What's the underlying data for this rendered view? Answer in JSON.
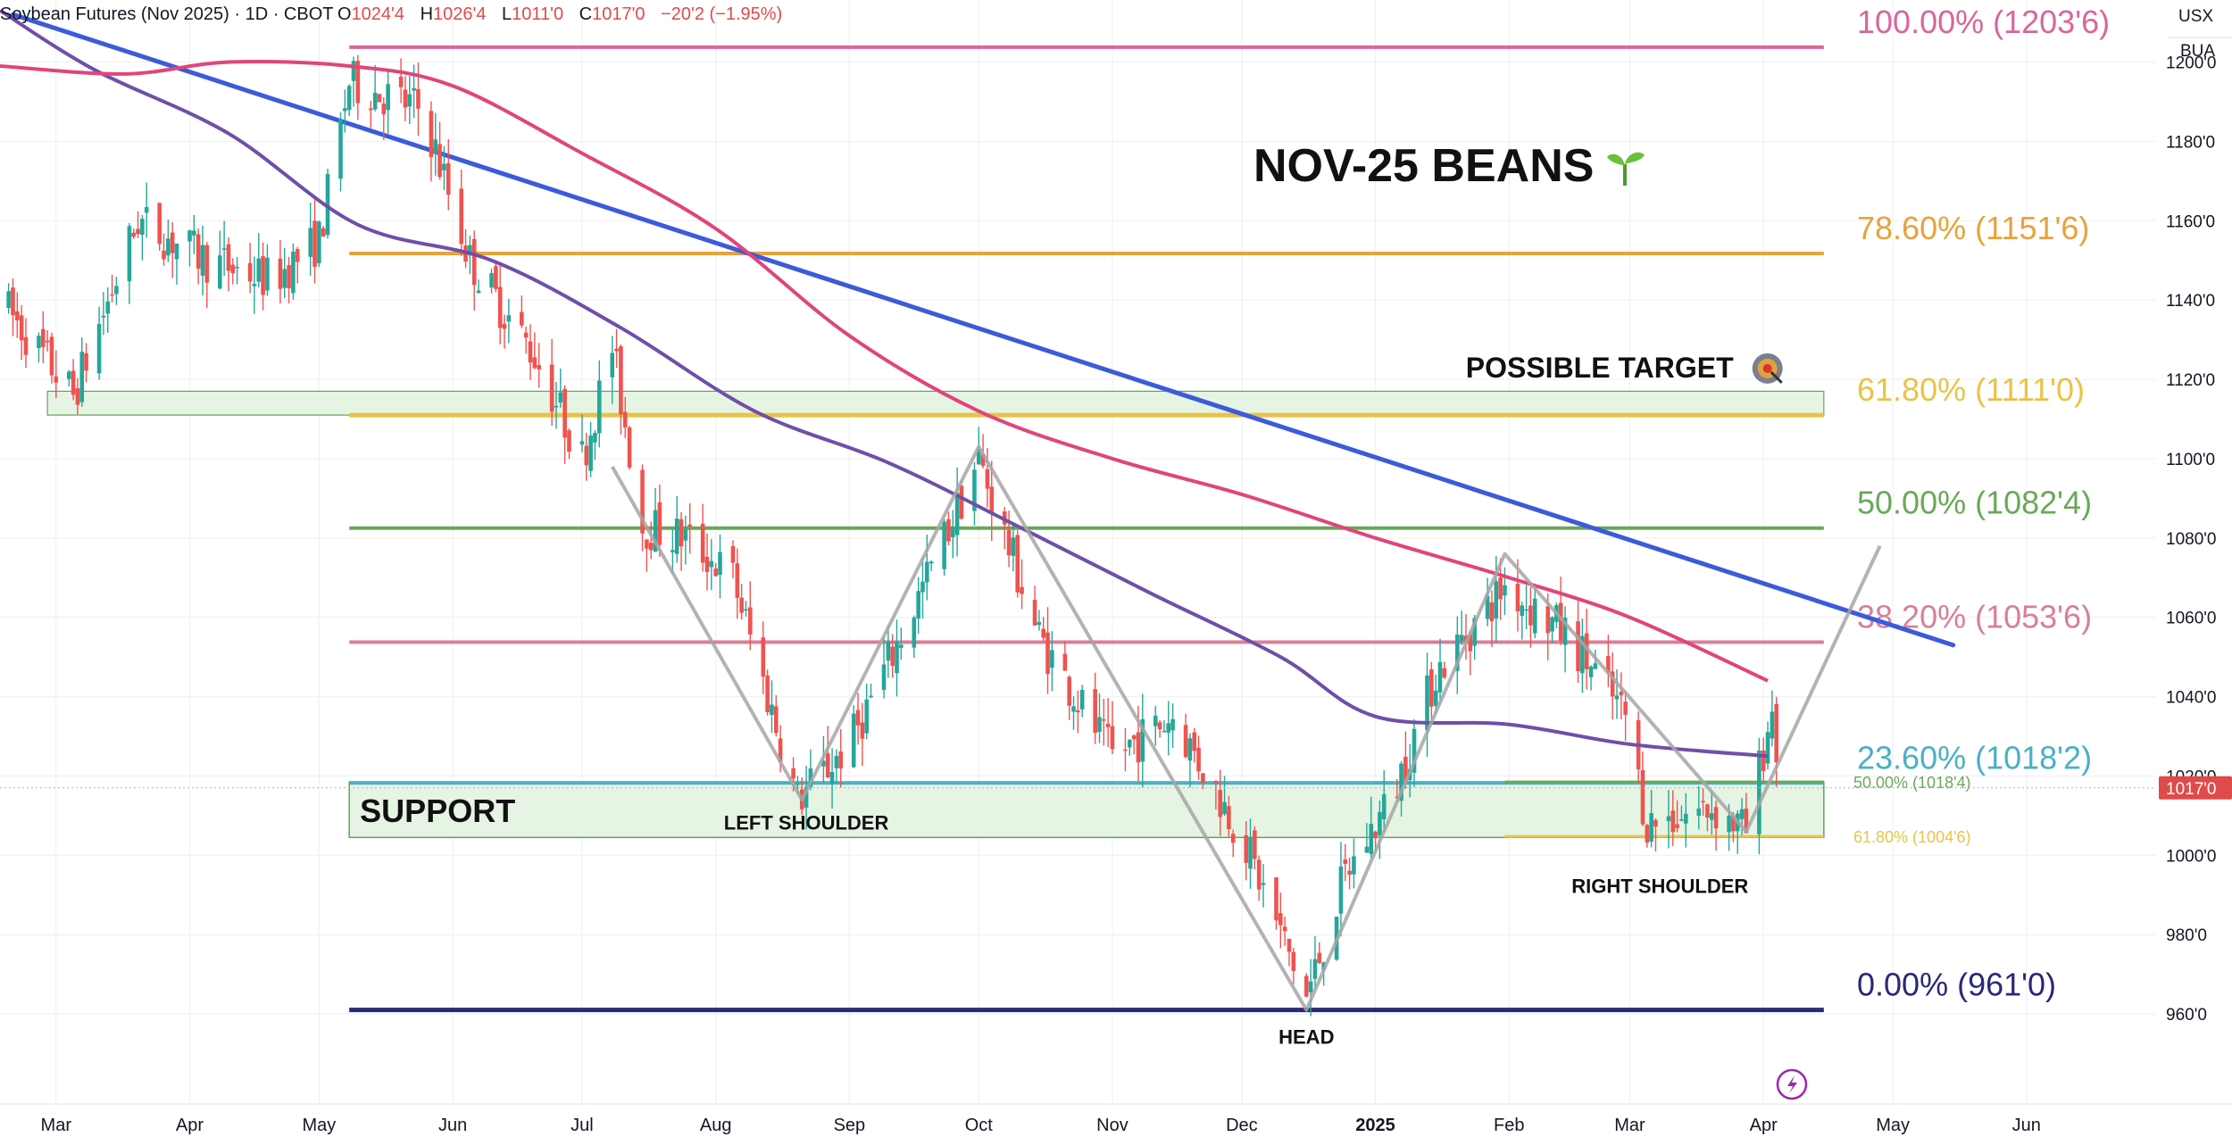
{
  "header": {
    "symbol": "Soybean Futures (Nov 2025) · 1D · CBOT",
    "o_label": "O",
    "o": "1024'4",
    "h_label": "H",
    "h": "1026'4",
    "l_label": "L",
    "l": "1011'0",
    "c_label": "C",
    "c": "1017'0",
    "change": "−20'2 (−1.95%)"
  },
  "axis_badges": {
    "currency": "USX",
    "unit": "BUA",
    "last_price": "1017'0"
  },
  "colors": {
    "up": "#26a69a",
    "down": "#ef5350",
    "trendline": "#3b5bdb",
    "ma_pink": "#e0457b",
    "ma_purple": "#6f4fa8",
    "pattern": "#a6a6a6",
    "support_fill": "#e6f4e3",
    "support_edge": "#5fa55a",
    "last_price_badge": "#e04a4a"
  },
  "chart_data": {
    "type": "candlestick",
    "title": "NOV-25 BEANS",
    "title_icon": "seedling-icon",
    "y_range": [
      940,
      1208
    ],
    "y_ticks": [
      "1200'0",
      "1180'0",
      "1160'0",
      "1140'0",
      "1120'0",
      "1100'0",
      "1080'0",
      "1060'0",
      "1040'0",
      "1020'0",
      "1000'0",
      "980'0",
      "960'0"
    ],
    "x_ticks": [
      "Mar",
      "Apr",
      "May",
      "Jun",
      "Jul",
      "Aug",
      "Sep",
      "Oct",
      "Nov",
      "Dec",
      "2025",
      "Feb",
      "Mar",
      "Apr",
      "May",
      "Jun"
    ],
    "x_start": "2024-02-17",
    "x_end": "2025-07-05",
    "fib_levels": [
      {
        "label": "100.00% (1203'6)",
        "price": 1203.75,
        "color": "#d9669a"
      },
      {
        "label": "78.60% (1151'6)",
        "price": 1151.75,
        "color": "#e8a23a"
      },
      {
        "label": "61.80% (1111'0)",
        "price": 1111.0,
        "color": "#e9c346"
      },
      {
        "label": "50.00% (1082'4)",
        "price": 1082.5,
        "color": "#6aa85a"
      },
      {
        "label": "38.20% (1053'6)",
        "price": 1053.75,
        "color": "#d97f9a"
      },
      {
        "label": "23.60% (1018'2)",
        "price": 1018.25,
        "color": "#4ab0c4"
      },
      {
        "label": "0.00% (961'0)",
        "price": 961.0,
        "color": "#2b2877"
      }
    ],
    "fib_start": "2024-05-08",
    "fib_end": "2025-04-15",
    "small_fib_levels": [
      {
        "label": "50.00% (1018'4)",
        "price": 1018.5,
        "color": "#6aa85a"
      },
      {
        "label": "61.80% (1004'6)",
        "price": 1004.75,
        "color": "#e9c346"
      }
    ],
    "small_fib_start": "2025-01-31",
    "support_zone": {
      "label": "SUPPORT",
      "price_top": 1018.5,
      "price_bottom": 1004.5,
      "start": "2024-05-08",
      "end": "2025-04-15"
    },
    "upper_zone": {
      "price_top": 1117,
      "price_bottom": 1111,
      "start": "2024-02-28",
      "end": "2025-04-15"
    },
    "trendline": {
      "start": "2024-02-20",
      "start_price": 1212,
      "end": "2025-05-15",
      "end_price": 1053
    },
    "pattern_path": [
      {
        "date": "2024-07-08",
        "price": 1098
      },
      {
        "date": "2024-08-21",
        "price": 1014
      },
      {
        "date": "2024-10-01",
        "price": 1103
      },
      {
        "date": "2024-12-16",
        "price": 961
      },
      {
        "date": "2025-01-31",
        "price": 1076
      },
      {
        "date": "2025-03-28",
        "price": 1006
      },
      {
        "date": "2025-04-28",
        "price": 1078
      }
    ],
    "annotations": [
      {
        "text": "LEFT SHOULDER",
        "date": "2024-08-22",
        "price": 1006.5
      },
      {
        "text": "HEAD",
        "date": "2024-12-16",
        "price": 952.5
      },
      {
        "text": "RIGHT SHOULDER",
        "date": "2025-03-08",
        "price": 990.5
      },
      {
        "text": "POSSIBLE TARGET",
        "date": "2025-02-22",
        "price": 1120.5,
        "icon": "target-icon"
      }
    ],
    "ma_pink": [
      {
        "date": "2024-02-17",
        "price": 1199
      },
      {
        "date": "2024-03-17",
        "price": 1197
      },
      {
        "date": "2024-04-10",
        "price": 1200
      },
      {
        "date": "2024-05-08",
        "price": 1199
      },
      {
        "date": "2024-06-01",
        "price": 1194
      },
      {
        "date": "2024-07-01",
        "price": 1177
      },
      {
        "date": "2024-08-01",
        "price": 1158
      },
      {
        "date": "2024-09-01",
        "price": 1131
      },
      {
        "date": "2024-10-01",
        "price": 1112
      },
      {
        "date": "2024-11-01",
        "price": 1100
      },
      {
        "date": "2024-12-01",
        "price": 1091
      },
      {
        "date": "2025-01-01",
        "price": 1080
      },
      {
        "date": "2025-02-01",
        "price": 1070
      },
      {
        "date": "2025-03-01",
        "price": 1060
      },
      {
        "date": "2025-04-02",
        "price": 1044
      }
    ],
    "ma_purple": [
      {
        "date": "2024-02-17",
        "price": 1213
      },
      {
        "date": "2024-03-10",
        "price": 1198
      },
      {
        "date": "2024-04-10",
        "price": 1182
      },
      {
        "date": "2024-05-10",
        "price": 1159
      },
      {
        "date": "2024-06-10",
        "price": 1150
      },
      {
        "date": "2024-07-10",
        "price": 1133
      },
      {
        "date": "2024-08-10",
        "price": 1112
      },
      {
        "date": "2024-09-10",
        "price": 1099
      },
      {
        "date": "2024-10-10",
        "price": 1083
      },
      {
        "date": "2024-11-10",
        "price": 1066
      },
      {
        "date": "2024-12-10",
        "price": 1050
      },
      {
        "date": "2025-01-01",
        "price": 1035
      },
      {
        "date": "2025-02-01",
        "price": 1033
      },
      {
        "date": "2025-03-01",
        "price": 1028
      },
      {
        "date": "2025-04-02",
        "price": 1025
      }
    ],
    "price_path": [
      {
        "date": "2024-02-17",
        "price": 1140
      },
      {
        "date": "2024-03-05",
        "price": 1116
      },
      {
        "date": "2024-03-20",
        "price": 1160
      },
      {
        "date": "2024-04-05",
        "price": 1150
      },
      {
        "date": "2024-04-20",
        "price": 1145
      },
      {
        "date": "2024-05-01",
        "price": 1155
      },
      {
        "date": "2024-05-08",
        "price": 1195
      },
      {
        "date": "2024-05-25",
        "price": 1188
      },
      {
        "date": "2024-06-05",
        "price": 1150
      },
      {
        "date": "2024-06-20",
        "price": 1126
      },
      {
        "date": "2024-07-01",
        "price": 1100
      },
      {
        "date": "2024-07-08",
        "price": 1128
      },
      {
        "date": "2024-07-15",
        "price": 1083
      },
      {
        "date": "2024-07-25",
        "price": 1080
      },
      {
        "date": "2024-08-05",
        "price": 1070
      },
      {
        "date": "2024-08-20",
        "price": 1014
      },
      {
        "date": "2024-09-01",
        "price": 1028
      },
      {
        "date": "2024-09-15",
        "price": 1060
      },
      {
        "date": "2024-10-01",
        "price": 1100
      },
      {
        "date": "2024-10-15",
        "price": 1055
      },
      {
        "date": "2024-11-01",
        "price": 1025
      },
      {
        "date": "2024-11-15",
        "price": 1035
      },
      {
        "date": "2024-12-01",
        "price": 1005
      },
      {
        "date": "2024-12-16",
        "price": 964
      },
      {
        "date": "2024-12-25",
        "price": 995
      },
      {
        "date": "2025-01-05",
        "price": 1015
      },
      {
        "date": "2025-01-15",
        "price": 1046
      },
      {
        "date": "2025-01-31",
        "price": 1068
      },
      {
        "date": "2025-02-15",
        "price": 1055
      },
      {
        "date": "2025-02-28",
        "price": 1035
      },
      {
        "date": "2025-03-05",
        "price": 1008
      },
      {
        "date": "2025-03-20",
        "price": 1012
      },
      {
        "date": "2025-03-28",
        "price": 1006
      },
      {
        "date": "2025-04-03",
        "price": 1037
      },
      {
        "date": "2025-04-05",
        "price": 1017
      }
    ]
  }
}
